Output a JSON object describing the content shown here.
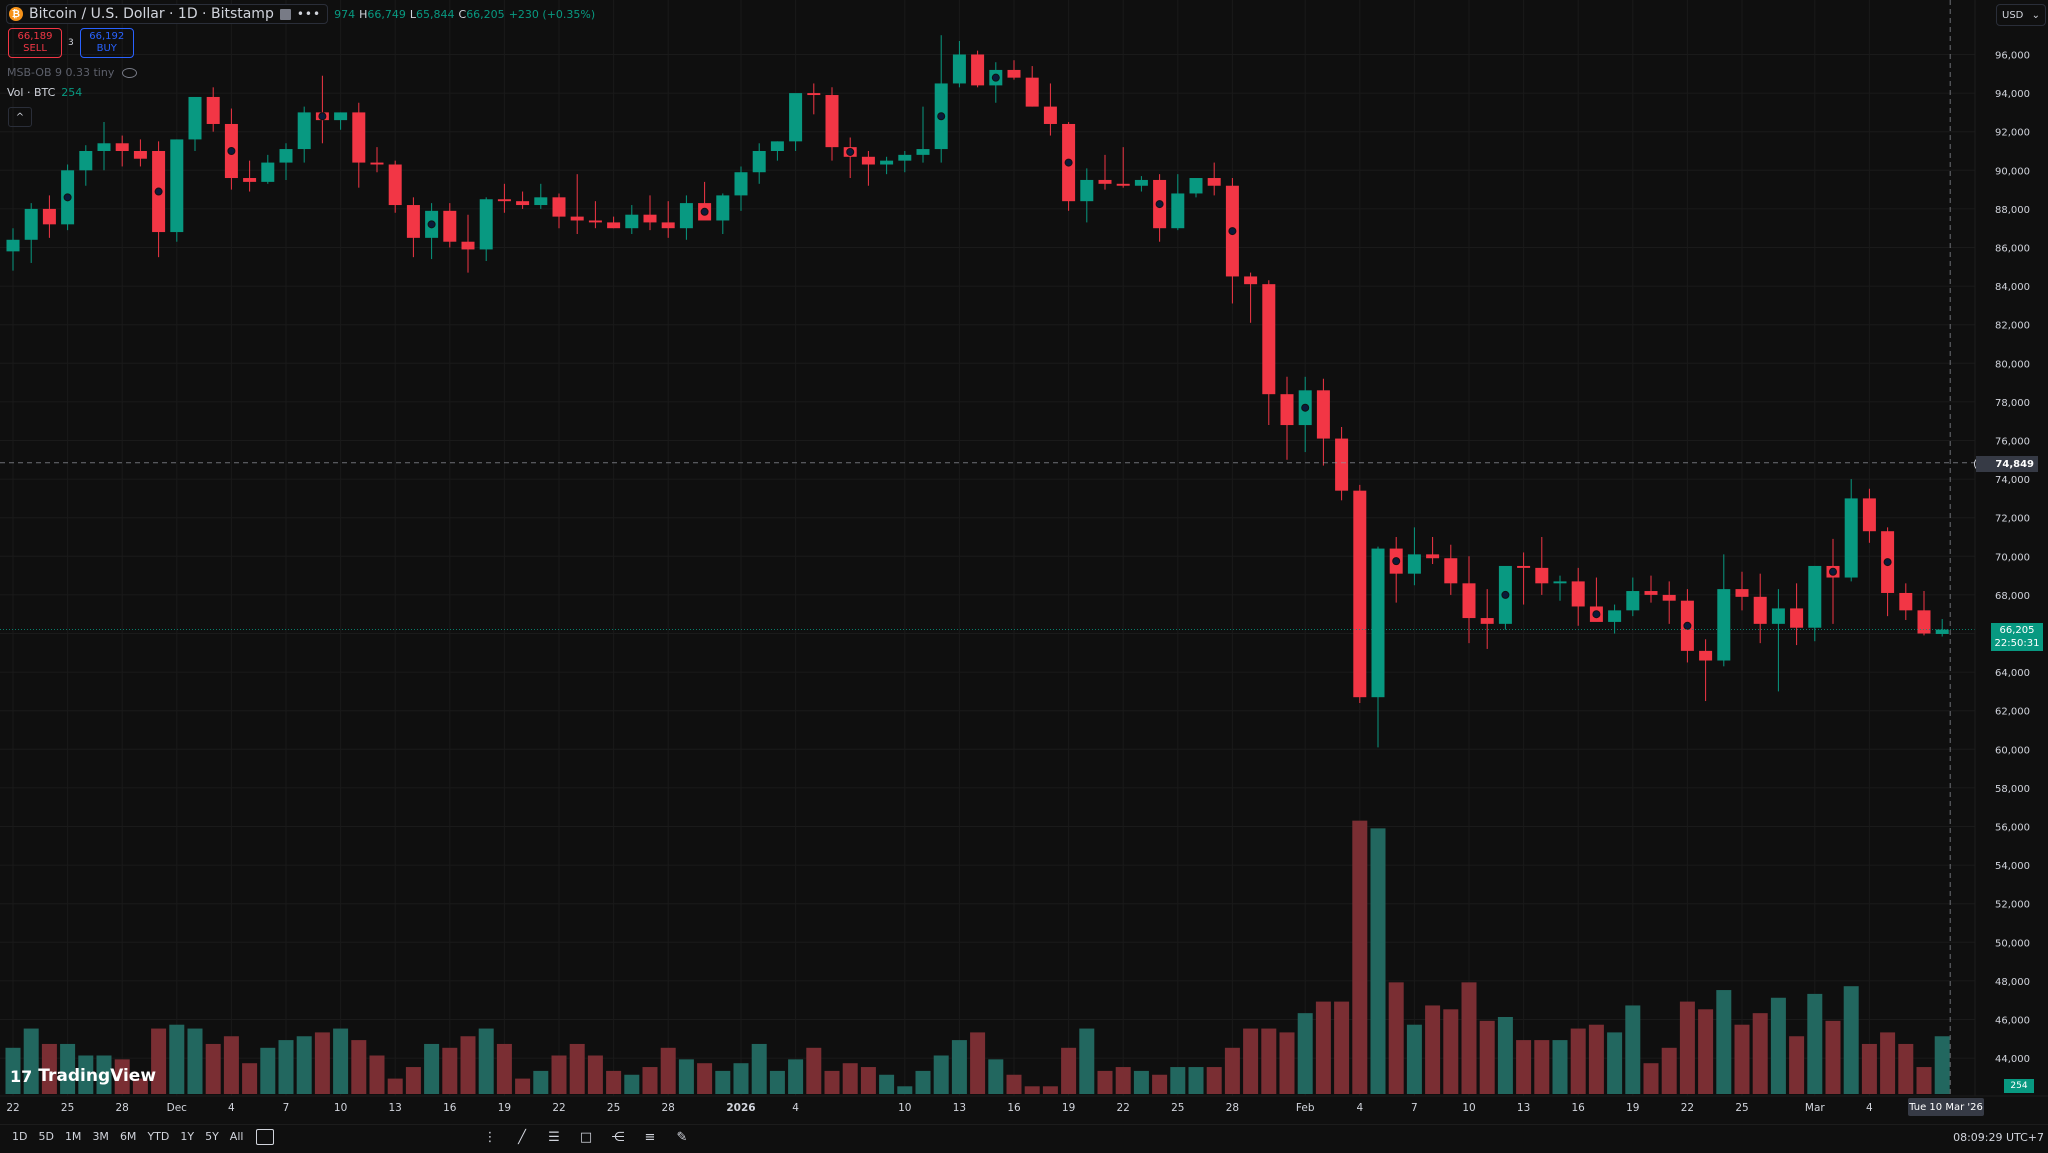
{
  "header": {
    "symbol_title": "Bitcoin / U.S. Dollar · 1D · Bitstamp",
    "btc_icon": "₿",
    "more_icon": "•••",
    "ohlc": {
      "o": "974",
      "h_label": "H",
      "h": "66,749",
      "l_label": "L",
      "l": "65,844",
      "c_label": "C",
      "c": "66,205",
      "change": "+230 (+0.35%)"
    }
  },
  "trade": {
    "sell_price": "66,189",
    "sell_label": "SELL",
    "spread": "3",
    "buy_price": "66,192",
    "buy_label": "BUY"
  },
  "indicators": {
    "msb": "MSB-OB 9 0.33 tiny",
    "vol_name": "Vol · BTC",
    "vol_value": "254",
    "collapse_icon": "^"
  },
  "currency": {
    "label": "USD",
    "chevron": "⌄"
  },
  "price_scale": {
    "ticks": [
      "96,000",
      "94,000",
      "92,000",
      "90,000",
      "88,000",
      "86,000",
      "84,000",
      "82,000",
      "80,000",
      "78,000",
      "76,000",
      "74,000",
      "72,000",
      "70,000",
      "68,000",
      "66,000",
      "64,000",
      "62,000",
      "60,000",
      "58,000",
      "56,000",
      "54,000",
      "52,000",
      "50,000",
      "48,000",
      "46,000",
      "44,000"
    ],
    "crosshair_price": "74,849",
    "last_price": "66,205",
    "countdown": "22:50:31",
    "vol_badge": "254"
  },
  "time_scale": {
    "labels": [
      {
        "i": 0,
        "t": "22"
      },
      {
        "i": 3,
        "t": "25"
      },
      {
        "i": 6,
        "t": "28"
      },
      {
        "i": 9,
        "t": "Dec"
      },
      {
        "i": 12,
        "t": "4"
      },
      {
        "i": 15,
        "t": "7"
      },
      {
        "i": 18,
        "t": "10"
      },
      {
        "i": 21,
        "t": "13"
      },
      {
        "i": 24,
        "t": "16"
      },
      {
        "i": 27,
        "t": "19"
      },
      {
        "i": 30,
        "t": "22"
      },
      {
        "i": 33,
        "t": "25"
      },
      {
        "i": 36,
        "t": "28"
      },
      {
        "i": 40,
        "t": "2026"
      },
      {
        "i": 43,
        "t": "4"
      },
      {
        "i": 49,
        "t": "10"
      },
      {
        "i": 52,
        "t": "13"
      },
      {
        "i": 55,
        "t": "16"
      },
      {
        "i": 58,
        "t": "19"
      },
      {
        "i": 61,
        "t": "22"
      },
      {
        "i": 64,
        "t": "25"
      },
      {
        "i": 67,
        "t": "28"
      },
      {
        "i": 71,
        "t": "Feb"
      },
      {
        "i": 74,
        "t": "4"
      },
      {
        "i": 77,
        "t": "7"
      },
      {
        "i": 80,
        "t": "10"
      },
      {
        "i": 83,
        "t": "13"
      },
      {
        "i": 86,
        "t": "16"
      },
      {
        "i": 89,
        "t": "19"
      },
      {
        "i": 92,
        "t": "22"
      },
      {
        "i": 95,
        "t": "25"
      },
      {
        "i": 99,
        "t": "Mar"
      },
      {
        "i": 102,
        "t": "4"
      }
    ],
    "cursor_date": "Tue 10 Mar '26"
  },
  "bottom_bar": {
    "ranges": [
      "1D",
      "5D",
      "1M",
      "3M",
      "6M",
      "YTD",
      "1Y",
      "5Y",
      "All"
    ],
    "tools": [
      "dots-grip-icon",
      "trend-line-icon",
      "fib-icon",
      "rectangle-icon",
      "pitchfork-icon",
      "parallel-channel-icon",
      "brush-icon"
    ],
    "clock": "08:09:29 UTC+7"
  },
  "branding": {
    "logo_mark": "17",
    "logo_text": "TradingView"
  },
  "colors": {
    "up": "#089981",
    "down": "#f23645",
    "vol_up": "#22675f",
    "vol_down": "#7a2e33",
    "bg": "#0f0f0f"
  },
  "chart_data": {
    "type": "candlestick",
    "symbol": "BTCUSD",
    "interval": "1D",
    "ylim": [
      43000,
      97500
    ],
    "grid": true,
    "candles": [
      [
        85800,
        87000,
        84800,
        86400,
        1.2
      ],
      [
        86400,
        88300,
        85200,
        88000,
        1.7
      ],
      [
        88000,
        88700,
        86500,
        87200,
        1.3
      ],
      [
        87200,
        90300,
        86900,
        90000,
        1.3
      ],
      [
        90000,
        91300,
        89200,
        91000,
        1.0
      ],
      [
        91000,
        92500,
        90000,
        91400,
        1.0
      ],
      [
        91400,
        91800,
        90200,
        91000,
        0.9
      ],
      [
        91000,
        91600,
        90200,
        90600,
        0.4
      ],
      [
        91000,
        91500,
        85500,
        86800,
        1.7
      ],
      [
        86800,
        91600,
        86300,
        91600,
        1.8
      ],
      [
        91600,
        93500,
        91000,
        93800,
        1.7
      ],
      [
        93800,
        94300,
        92000,
        92400,
        1.3
      ],
      [
        92400,
        93200,
        89000,
        89600,
        1.5
      ],
      [
        89600,
        90500,
        88900,
        89400,
        0.8
      ],
      [
        89400,
        90800,
        89300,
        90400,
        1.2
      ],
      [
        90400,
        91400,
        89500,
        91100,
        1.4
      ],
      [
        91100,
        93300,
        90400,
        93000,
        1.5
      ],
      [
        93000,
        94900,
        91400,
        92600,
        1.6
      ],
      [
        92600,
        93000,
        92100,
        93000,
        1.7
      ],
      [
        93000,
        93500,
        89100,
        90400,
        1.4
      ],
      [
        90400,
        91200,
        89900,
        90300,
        1.0
      ],
      [
        90300,
        90500,
        87800,
        88200,
        0.4
      ],
      [
        88200,
        88600,
        85500,
        86500,
        0.7
      ],
      [
        86500,
        88300,
        85400,
        87900,
        1.3
      ],
      [
        87900,
        88300,
        86000,
        86300,
        1.2
      ],
      [
        86300,
        87700,
        84700,
        85900,
        1.5
      ],
      [
        85900,
        88600,
        85300,
        88500,
        1.7
      ],
      [
        88500,
        89300,
        87800,
        88400,
        1.3
      ],
      [
        88400,
        88900,
        88000,
        88200,
        0.4
      ],
      [
        88200,
        89300,
        88000,
        88600,
        0.6
      ],
      [
        88600,
        88800,
        87000,
        87600,
        1.0
      ],
      [
        87600,
        89800,
        86700,
        87400,
        1.3
      ],
      [
        87400,
        88400,
        87000,
        87300,
        1.0
      ],
      [
        87300,
        87600,
        87000,
        87000,
        0.6
      ],
      [
        87000,
        88200,
        86700,
        87700,
        0.5
      ],
      [
        87700,
        88700,
        86900,
        87300,
        0.7
      ],
      [
        87300,
        88400,
        86500,
        87000,
        1.2
      ],
      [
        87000,
        88700,
        86400,
        88300,
        0.9
      ],
      [
        88300,
        89400,
        87800,
        87400,
        0.8
      ],
      [
        87400,
        88800,
        86700,
        88700,
        0.6
      ],
      [
        88700,
        90200,
        87900,
        89900,
        0.8
      ],
      [
        89900,
        91400,
        89300,
        91000,
        1.3
      ],
      [
        91000,
        91500,
        90500,
        91500,
        0.6
      ],
      [
        91500,
        93700,
        91000,
        94000,
        0.9
      ],
      [
        94000,
        94500,
        92900,
        93900,
        1.2
      ],
      [
        93900,
        94300,
        90500,
        91200,
        0.6
      ],
      [
        91200,
        91700,
        89600,
        90700,
        0.8
      ],
      [
        90700,
        91000,
        89200,
        90300,
        0.7
      ],
      [
        90300,
        90700,
        89800,
        90500,
        0.5
      ],
      [
        90500,
        91000,
        89900,
        90800,
        0.2
      ],
      [
        90800,
        93300,
        90400,
        91100,
        0.6
      ],
      [
        91100,
        97000,
        90400,
        94500,
        1.0
      ],
      [
        94500,
        96700,
        94300,
        96000,
        1.4
      ],
      [
        96000,
        96200,
        94300,
        94400,
        1.6
      ],
      [
        94400,
        95600,
        93500,
        95200,
        0.9
      ],
      [
        95200,
        95700,
        94700,
        94800,
        0.5
      ],
      [
        94800,
        95400,
        93300,
        93300,
        0.2
      ],
      [
        93300,
        94500,
        91800,
        92400,
        0.2
      ],
      [
        92400,
        92500,
        87900,
        88400,
        1.2
      ],
      [
        88400,
        90100,
        87300,
        89500,
        1.7
      ],
      [
        89500,
        90800,
        89000,
        89300,
        0.6
      ],
      [
        89300,
        91200,
        89100,
        89200,
        0.7
      ],
      [
        89200,
        89700,
        88900,
        89500,
        0.6
      ],
      [
        89500,
        89800,
        86300,
        87000,
        0.5
      ],
      [
        87000,
        89800,
        86900,
        88800,
        0.7
      ],
      [
        88800,
        89500,
        88600,
        89600,
        0.7
      ],
      [
        89600,
        90400,
        88700,
        89200,
        0.7
      ],
      [
        89200,
        89600,
        83100,
        84500,
        1.2
      ],
      [
        84500,
        84700,
        82100,
        84100,
        1.7
      ],
      [
        84100,
        84300,
        76800,
        78400,
        1.7
      ],
      [
        78400,
        79300,
        75000,
        76800,
        1.6
      ],
      [
        76800,
        79300,
        75400,
        78600,
        2.1
      ],
      [
        78600,
        79200,
        74700,
        76100,
        2.4
      ],
      [
        76100,
        76700,
        72900,
        73400,
        2.4
      ],
      [
        73400,
        73700,
        62400,
        62700,
        7.1
      ],
      [
        62700,
        70500,
        60100,
        70400,
        6.9
      ],
      [
        70400,
        71000,
        67600,
        69100,
        2.9
      ],
      [
        69100,
        71500,
        68500,
        70100,
        1.8
      ],
      [
        70100,
        71000,
        69600,
        69900,
        2.3
      ],
      [
        69900,
        70600,
        68000,
        68600,
        2.2
      ],
      [
        68600,
        70000,
        65500,
        66800,
        2.9
      ],
      [
        66800,
        68300,
        65200,
        66500,
        1.9
      ],
      [
        66500,
        69400,
        66200,
        69500,
        2.0
      ],
      [
        69500,
        70200,
        67500,
        69400,
        1.4
      ],
      [
        69400,
        71000,
        68000,
        68600,
        1.4
      ],
      [
        68600,
        69000,
        67700,
        68700,
        1.4
      ],
      [
        68700,
        69400,
        66400,
        67400,
        1.7
      ],
      [
        67400,
        68900,
        66800,
        66600,
        1.8
      ],
      [
        66600,
        67500,
        66000,
        67200,
        1.6
      ],
      [
        67200,
        68900,
        66900,
        68200,
        2.3
      ],
      [
        68200,
        69000,
        67600,
        68000,
        0.8
      ],
      [
        68000,
        68700,
        66500,
        67700,
        1.2
      ],
      [
        67700,
        68300,
        64500,
        65100,
        2.4
      ],
      [
        65100,
        65700,
        62500,
        64600,
        2.2
      ],
      [
        64600,
        70100,
        64300,
        68300,
        2.7
      ],
      [
        68300,
        69200,
        67200,
        67900,
        1.8
      ],
      [
        67900,
        69100,
        65500,
        66500,
        2.1
      ],
      [
        66500,
        68300,
        63000,
        67300,
        2.5
      ],
      [
        67300,
        68600,
        65400,
        66300,
        1.5
      ],
      [
        66300,
        69500,
        65600,
        69500,
        2.6
      ],
      [
        69500,
        70900,
        66500,
        68900,
        1.9
      ],
      [
        68900,
        74000,
        68700,
        73000,
        2.8
      ],
      [
        73000,
        73500,
        70700,
        71300,
        1.3
      ],
      [
        71300,
        71500,
        66900,
        68100,
        1.6
      ],
      [
        68100,
        68600,
        66700,
        67200,
        1.3
      ],
      [
        67200,
        68200,
        65900,
        66000,
        0.7
      ],
      [
        65975,
        66749,
        65844,
        66205,
        1.5
      ]
    ],
    "ob_markers": [
      3,
      8,
      12,
      17,
      23,
      38,
      46,
      51,
      54,
      58,
      63,
      67,
      71,
      76,
      82,
      87,
      92,
      100,
      103
    ]
  }
}
